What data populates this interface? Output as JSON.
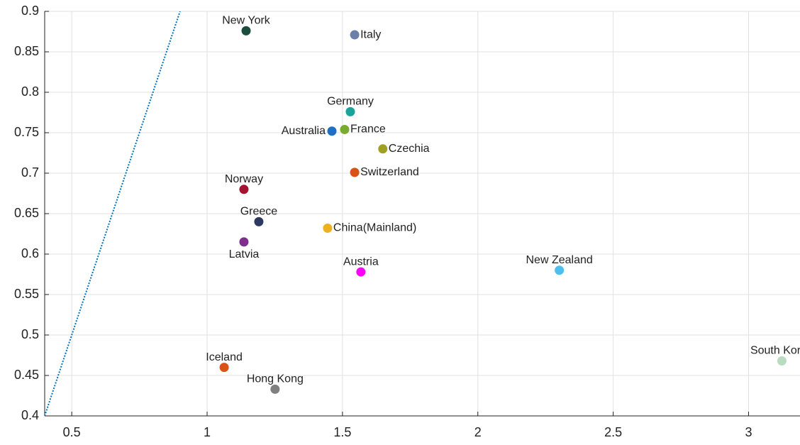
{
  "chart_data": {
    "type": "scatter",
    "labels": [
      "New York",
      "Italy",
      "Germany",
      "Australia",
      "France",
      "Czechia",
      "Switzerland",
      "Norway",
      "Greece",
      "China(Mainland)",
      "Latvia",
      "Austria",
      "New Zealand",
      "South Korea",
      "Iceland",
      "Hong Kong"
    ],
    "x": [
      1.144,
      1.545,
      1.529,
      1.461,
      1.508,
      1.649,
      1.545,
      1.136,
      1.191,
      1.445,
      1.136,
      1.568,
      2.301,
      3.123,
      1.063,
      1.251
    ],
    "y": [
      0.876,
      0.871,
      0.776,
      0.752,
      0.754,
      0.73,
      0.701,
      0.68,
      0.64,
      0.632,
      0.615,
      0.578,
      0.58,
      0.468,
      0.46,
      0.433
    ],
    "colors": [
      "#1b4d3e",
      "#6b7fa8",
      "#1aa39a",
      "#1f6fc4",
      "#77ac30",
      "#a0a020",
      "#d95319",
      "#a2142f",
      "#2b3a5e",
      "#edb120",
      "#7e2f8e",
      "#ff00ff",
      "#4dbeee",
      "#b8dcc0",
      "#d95319",
      "#808080"
    ],
    "label_positions": [
      "above",
      "right",
      "above",
      "left",
      "right",
      "right",
      "right",
      "above",
      "above",
      "right",
      "below",
      "above",
      "above",
      "above",
      "above",
      "above"
    ],
    "reference_line": {
      "x": [
        0.4,
        0.9
      ],
      "y": [
        0.4,
        0.9
      ],
      "color": "#0072bd"
    },
    "xlim": [
      0.4,
      3.19
    ],
    "ylim": [
      0.4,
      0.9
    ],
    "xticks": [
      0.5,
      1,
      1.5,
      2,
      2.5,
      3
    ],
    "yticks": [
      0.4,
      0.45,
      0.5,
      0.55,
      0.6,
      0.65,
      0.7,
      0.75,
      0.8,
      0.85,
      0.9
    ],
    "grid": true
  }
}
